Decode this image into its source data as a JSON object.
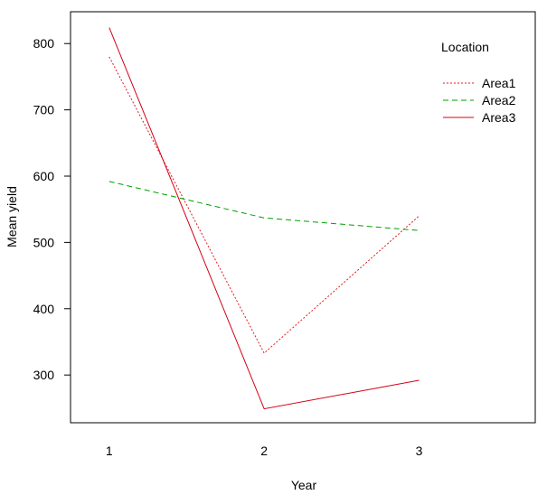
{
  "chart_data": {
    "type": "line",
    "title": "",
    "xlabel": "Year",
    "ylabel": "Mean yield",
    "x": [
      1,
      2,
      3
    ],
    "x_tick_labels": [
      "1",
      "2",
      "3"
    ],
    "y_ticks": [
      300,
      400,
      500,
      600,
      700,
      800
    ],
    "y_tick_labels": [
      "300",
      "400",
      "500",
      "600",
      "700",
      "800"
    ],
    "xlim": [
      0.75,
      3.75
    ],
    "ylim": [
      228,
      848
    ],
    "grid": false,
    "legend": {
      "title": "Location",
      "placement": "top-right",
      "box": false
    },
    "series": [
      {
        "name": "Area1",
        "values": [
          780,
          333,
          540
        ],
        "color": "#E41A1C",
        "linestyle": "dotted"
      },
      {
        "name": "Area2",
        "values": [
          592,
          537,
          518
        ],
        "color": "#009E00",
        "linestyle": "dashed"
      },
      {
        "name": "Area3",
        "values": [
          824,
          249,
          292
        ],
        "color": "#D40015",
        "linestyle": "solid"
      }
    ]
  }
}
